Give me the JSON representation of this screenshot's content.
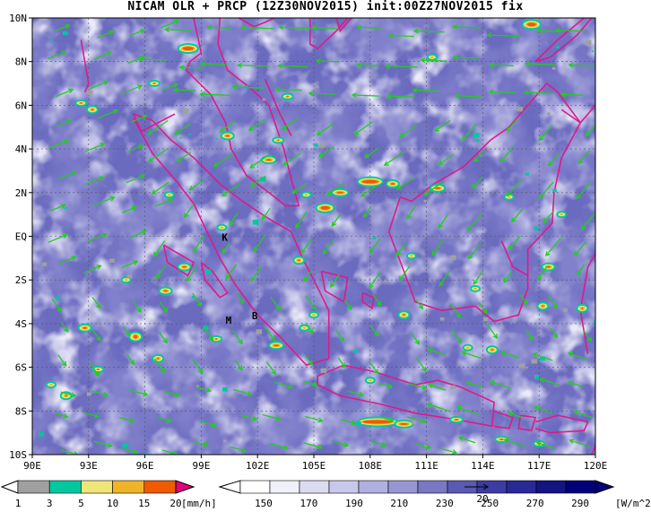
{
  "title": "NICAM OLR + PRCP (12Z30NOV2015) init:00Z27NOV2015 fix",
  "lon_labels": [
    "90E",
    "93E",
    "96E",
    "99E",
    "102E",
    "105E",
    "108E",
    "111E",
    "114E",
    "117E",
    "120E"
  ],
  "lat_labels": [
    "10N",
    "8N",
    "6N",
    "4N",
    "2N",
    "EQ",
    "2S",
    "4S",
    "6S",
    "8S",
    "10S"
  ],
  "place_markers": [
    {
      "text": "K",
      "lon": 100.1,
      "lat": -0.2
    },
    {
      "text": "M",
      "lon": 100.3,
      "lat": -4.0
    },
    {
      "text": "B",
      "lon": 101.7,
      "lat": -3.8
    }
  ],
  "prcp_colorbar": {
    "ticks": [
      "1",
      "3",
      "5",
      "10",
      "15",
      "20"
    ],
    "unit": "[mm/h]",
    "colors": [
      "#a0a0a0",
      "#00c8a0",
      "#f0e678",
      "#f0b428",
      "#f05a00",
      "#e6007a"
    ]
  },
  "olr_colorbar": {
    "ticks": [
      "150",
      "170",
      "190",
      "210",
      "230",
      "250",
      "270",
      "290"
    ],
    "unit": "[W/m^2]",
    "colors": [
      "#ffffff",
      "#f0f0fa",
      "#dcdcf0",
      "#c8c8eb",
      "#b0b0e0",
      "#9696d2",
      "#7878c3",
      "#5a5ab4",
      "#3c3ca5",
      "#282896",
      "#141482",
      "#000078"
    ]
  },
  "vector_scale_label": "20",
  "colors": {
    "wind": "#22cc22",
    "coast": "#dd1b8a",
    "grid": "#555555"
  }
}
